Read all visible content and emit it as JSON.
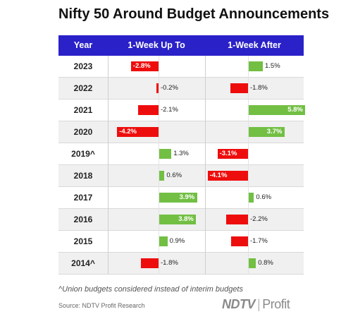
{
  "chart_data": {
    "type": "table",
    "title": "Nifty 50 Around Budget Announcements",
    "columns": [
      "Year",
      "1-Week Up To",
      "1-Week After"
    ],
    "categories": [
      "2023",
      "2022",
      "2021",
      "2020",
      "2019^",
      "2018",
      "2017",
      "2016",
      "2015",
      "2014^"
    ],
    "series": [
      {
        "name": "1-Week Up To",
        "values": [
          -2.8,
          -0.2,
          -2.1,
          -4.2,
          1.3,
          0.6,
          3.9,
          3.8,
          0.9,
          -1.8
        ],
        "labels": [
          "-2.8%",
          "-0.2%",
          "-2.1%",
          "-4.2%",
          "1.3%",
          "0.6%",
          "3.9%",
          "3.8%",
          "0.9%",
          "-1.8%"
        ]
      },
      {
        "name": "1-Week After",
        "values": [
          1.5,
          -1.8,
          5.8,
          3.7,
          -3.1,
          -4.1,
          0.6,
          -2.2,
          -1.7,
          0.8
        ],
        "labels": [
          "1.5%",
          "-1.8%",
          "5.8%",
          "3.7%",
          "-3.1%",
          "-4.1%",
          "0.6%",
          "-2.2%",
          "-1.7%",
          "0.8%"
        ]
      }
    ],
    "colors": {
      "positive": "#72bf44",
      "negative": "#ee0d0d",
      "header": "#2a21c8"
    }
  },
  "footnote": "^Union budgets considered instead of interim budgets",
  "source": "Source: NDTV Profit Research",
  "logo": {
    "brand": "NDTV",
    "product": "Profit",
    "logo_text": "NDTV | Profit"
  }
}
